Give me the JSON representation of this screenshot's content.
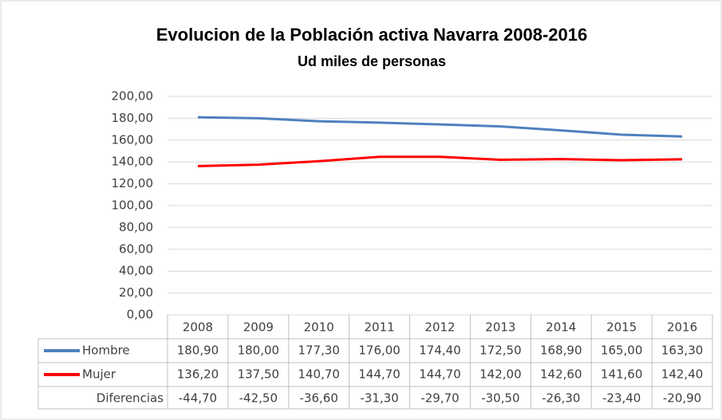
{
  "chart_data": {
    "type": "line",
    "title": "Evolucion de la Población activa Navarra 2008-2016",
    "subtitle": "Ud miles de personas",
    "categories": [
      "2008",
      "2009",
      "2010",
      "2011",
      "2012",
      "2013",
      "2014",
      "2015",
      "2016"
    ],
    "series": [
      {
        "name": "Hombre",
        "color": "#4f81bd",
        "values": [
          180.9,
          180.0,
          177.3,
          176.0,
          174.4,
          172.5,
          168.9,
          165.0,
          163.3
        ],
        "value_labels": [
          "180,90",
          "180,00",
          "177,30",
          "176,00",
          "174,40",
          "172,50",
          "168,90",
          "165,00",
          "163,30"
        ]
      },
      {
        "name": "Mujer",
        "color": "#ff0000",
        "values": [
          136.2,
          137.5,
          140.7,
          144.7,
          144.7,
          142.0,
          142.6,
          141.6,
          142.4
        ],
        "value_labels": [
          "136,20",
          "137,50",
          "140,70",
          "144,70",
          "144,70",
          "142,00",
          "142,60",
          "141,60",
          "142,40"
        ]
      },
      {
        "name": "Diferencias",
        "values": [
          -44.7,
          -42.5,
          -36.6,
          -31.3,
          -29.7,
          -30.5,
          -26.3,
          -23.4,
          -20.9
        ],
        "value_labels": [
          "-44,70",
          "-42,50",
          "-36,60",
          "-31,30",
          "-29,70",
          "-30,50",
          "-26,30",
          "-23,40",
          "-20,90"
        ]
      }
    ],
    "ylim": [
      0,
      200
    ],
    "yticks": [
      {
        "value": 0,
        "label": "0,00"
      },
      {
        "value": 20,
        "label": "20,00"
      },
      {
        "value": 40,
        "label": "40,00"
      },
      {
        "value": 60,
        "label": "60,00"
      },
      {
        "value": 80,
        "label": "80,00"
      },
      {
        "value": 100,
        "label": "100,00"
      },
      {
        "value": 120,
        "label": "120,00"
      },
      {
        "value": 140,
        "label": "140,00"
      },
      {
        "value": 160,
        "label": "160,00"
      },
      {
        "value": 180,
        "label": "180,00"
      },
      {
        "value": 200,
        "label": "200,00"
      }
    ],
    "grid": true
  }
}
